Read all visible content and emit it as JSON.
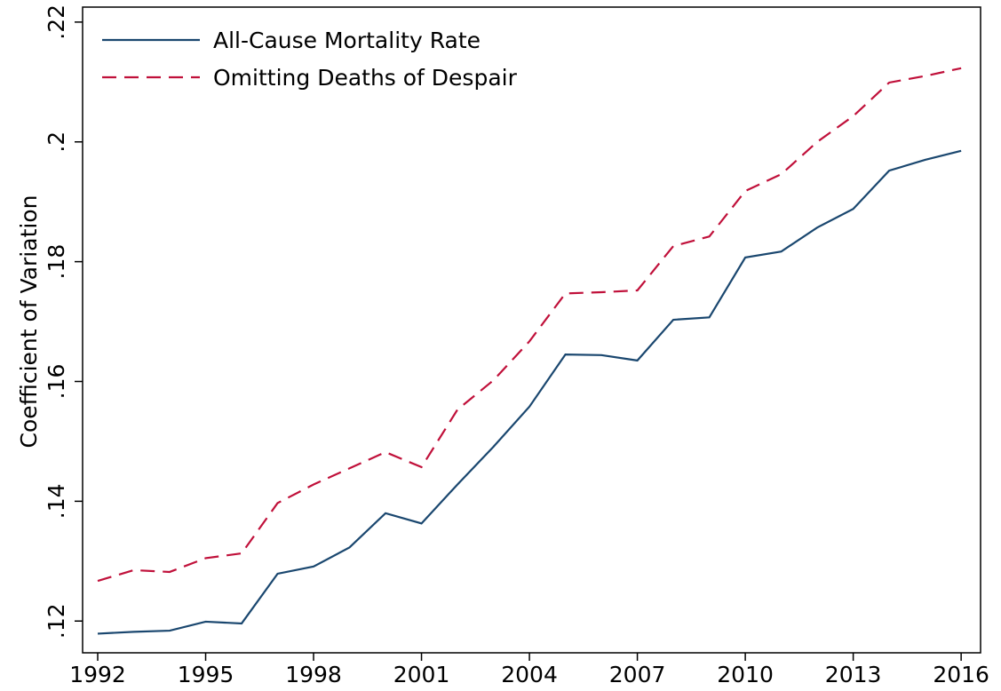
{
  "chart_data": {
    "type": "line",
    "ylabel": "Coefficient of Variation",
    "x": [
      1992,
      1993,
      1994,
      1995,
      1996,
      1997,
      1998,
      1999,
      2000,
      2001,
      2002,
      2003,
      2004,
      2005,
      2006,
      2007,
      2008,
      2009,
      2010,
      2011,
      2012,
      2013,
      2014,
      2015,
      2016
    ],
    "series": [
      {
        "name": "All-Cause Mortality Rate",
        "color": "#1a476f",
        "dash": false,
        "values": [
          0.1179,
          0.1182,
          0.1184,
          0.1199,
          0.1196,
          0.1279,
          0.1291,
          0.1323,
          0.138,
          0.1363,
          0.1428,
          0.1491,
          0.1558,
          0.1645,
          0.1644,
          0.1635,
          0.1703,
          0.1707,
          0.1807,
          0.1817,
          0.1857,
          0.1888,
          0.1952,
          0.197,
          0.1985
        ]
      },
      {
        "name": "Omitting Deaths of Despair",
        "color": "#c0103a",
        "dash": true,
        "values": [
          0.1267,
          0.1285,
          0.1282,
          0.1305,
          0.1313,
          0.1397,
          0.1428,
          0.1455,
          0.1482,
          0.1457,
          0.1553,
          0.1602,
          0.1667,
          0.1747,
          0.1749,
          0.1752,
          0.1826,
          0.1842,
          0.1918,
          0.1946,
          0.2,
          0.2043,
          0.2099,
          0.211,
          0.2123
        ]
      }
    ],
    "xlim": [
      1991.58,
      2016.54
    ],
    "xticks": [
      1992,
      1995,
      1998,
      2001,
      2004,
      2007,
      2010,
      2013,
      2016
    ],
    "ylim": [
      0.1147,
      0.2225
    ],
    "yticks": [
      {
        "value": 0.12,
        "label": ".12"
      },
      {
        "value": 0.14,
        "label": ".14"
      },
      {
        "value": 0.16,
        "label": ".16"
      },
      {
        "value": 0.18,
        "label": ".18"
      },
      {
        "value": 0.2,
        "label": ".2"
      },
      {
        "value": 0.22,
        "label": ".22"
      }
    ],
    "legend": "top-left"
  }
}
